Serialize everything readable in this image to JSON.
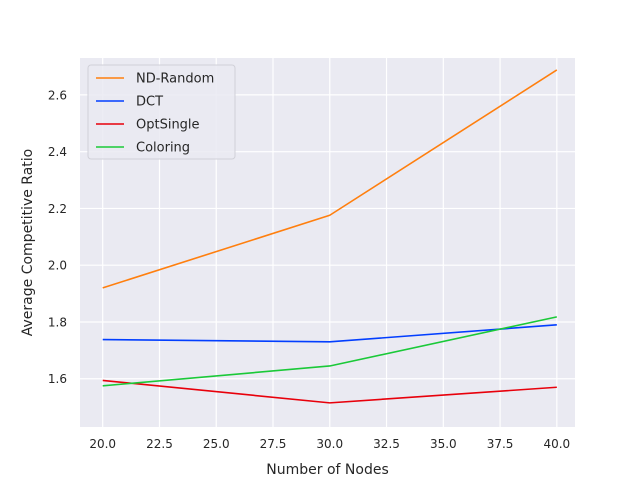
{
  "chart_data": {
    "type": "line",
    "title": "",
    "xlabel": "Number of Nodes",
    "ylabel": "Average Competitive Ratio",
    "x": [
      20,
      30,
      40
    ],
    "xlim": [
      19,
      40.8
    ],
    "ylim": [
      1.43,
      2.73
    ],
    "x_ticks": [
      "20.0",
      "22.5",
      "25.0",
      "27.5",
      "30.0",
      "32.5",
      "35.0",
      "37.5",
      "40.0"
    ],
    "y_ticks": [
      "1.6",
      "1.8",
      "2.0",
      "2.2",
      "2.4",
      "2.6"
    ],
    "grid": true,
    "legend_position": "top-left",
    "background_color": "#eaeaf2",
    "grid_color": "#ffffff",
    "series": [
      {
        "name": "ND-Random",
        "color": "#ff7f0e",
        "values": [
          1.92,
          2.176,
          2.688
        ]
      },
      {
        "name": "DCT",
        "color": "#023eff",
        "values": [
          1.738,
          1.73,
          1.79
        ]
      },
      {
        "name": "OptSingle",
        "color": "#e8000b",
        "values": [
          1.594,
          1.515,
          1.57
        ]
      },
      {
        "name": "Coloring",
        "color": "#1ac938",
        "values": [
          1.575,
          1.645,
          1.818
        ]
      }
    ]
  }
}
